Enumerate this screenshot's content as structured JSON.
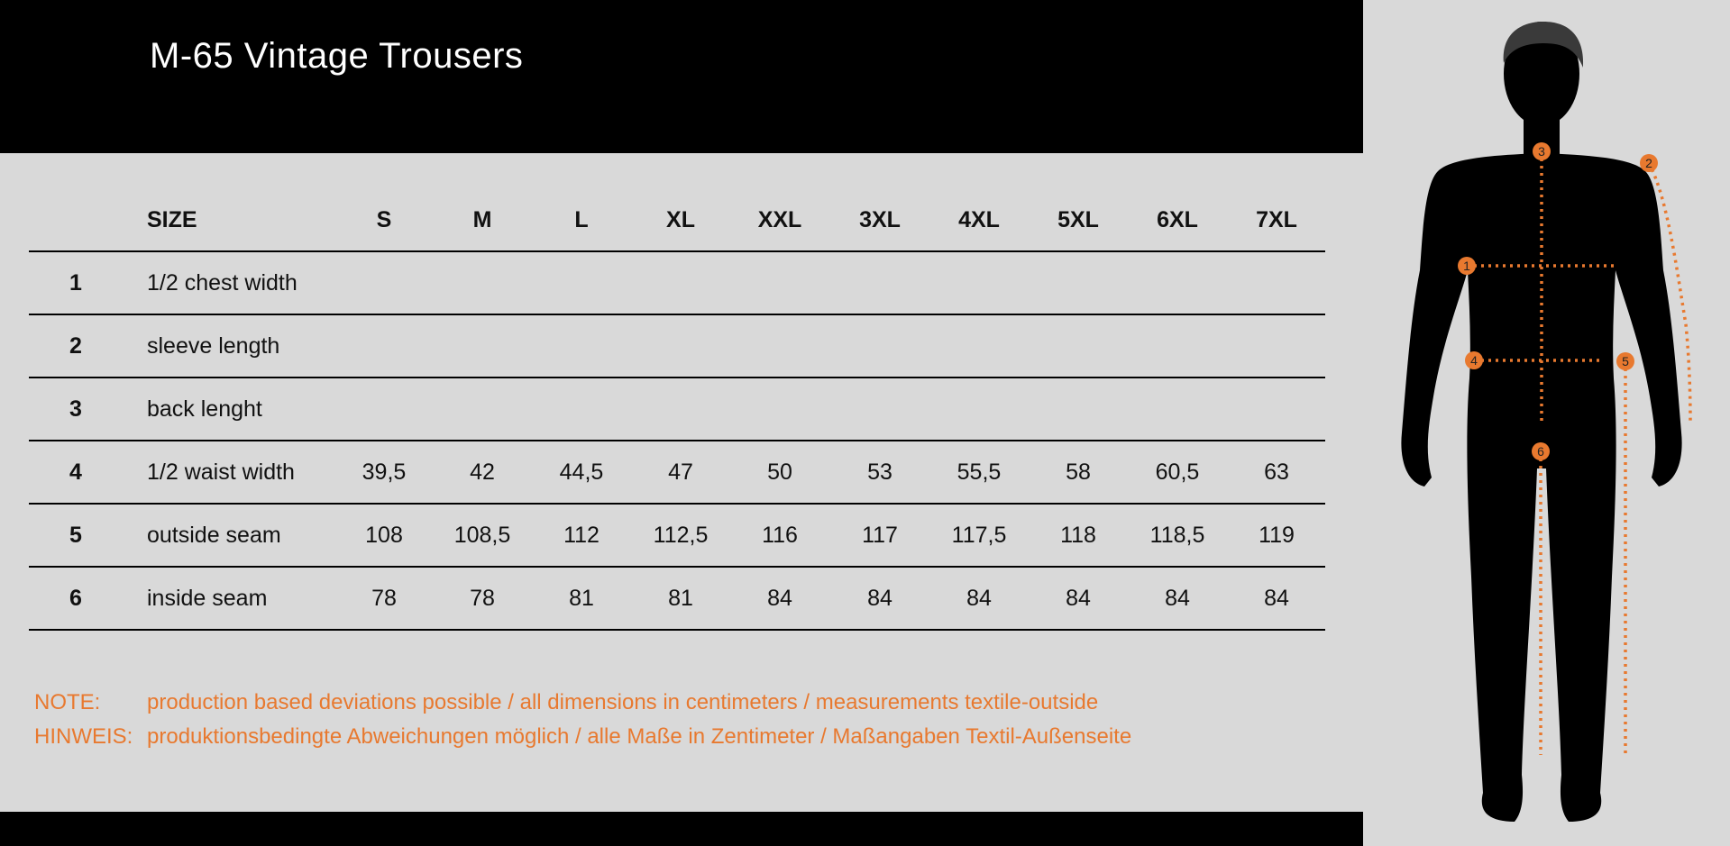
{
  "title": "M-65 Vintage Trousers",
  "table": {
    "header_label": "SIZE",
    "sizes": [
      "S",
      "M",
      "L",
      "XL",
      "XXL",
      "3XL",
      "4XL",
      "5XL",
      "6XL",
      "7XL"
    ],
    "rows": [
      {
        "num": "1",
        "label": "1/2 chest width",
        "values": [
          "",
          "",
          "",
          "",
          "",
          "",
          "",
          "",
          "",
          ""
        ]
      },
      {
        "num": "2",
        "label": "sleeve length",
        "values": [
          "",
          "",
          "",
          "",
          "",
          "",
          "",
          "",
          "",
          ""
        ]
      },
      {
        "num": "3",
        "label": "back lenght",
        "values": [
          "",
          "",
          "",
          "",
          "",
          "",
          "",
          "",
          "",
          ""
        ]
      },
      {
        "num": "4",
        "label": "1/2 waist width",
        "values": [
          "39,5",
          "42",
          "44,5",
          "47",
          "50",
          "53",
          "55,5",
          "58",
          "60,5",
          "63"
        ]
      },
      {
        "num": "5",
        "label": "outside seam",
        "values": [
          "108",
          "108,5",
          "112",
          "112,5",
          "116",
          "117",
          "117,5",
          "118",
          "118,5",
          "119"
        ]
      },
      {
        "num": "6",
        "label": "inside seam",
        "values": [
          "78",
          "78",
          "81",
          "81",
          "84",
          "84",
          "84",
          "84",
          "84",
          "84"
        ]
      }
    ]
  },
  "notes": [
    {
      "key": "NOTE:",
      "text": "production based deviations possible / all dimensions in centimeters / measurements textile-outside"
    },
    {
      "key": "HINWEIS:",
      "text": "produktionsbedingte Abweichungen möglich / alle Maße in Zentimeter / Maßangaben Textil-Außenseite"
    }
  ],
  "figure": {
    "icon": "body-silhouette-icon",
    "markers": [
      "1",
      "2",
      "3",
      "4",
      "5",
      "6"
    ]
  },
  "colors": {
    "accent": "#e8792f",
    "background": "#d9d9d9",
    "header": "#000000"
  }
}
